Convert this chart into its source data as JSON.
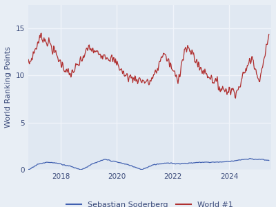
{
  "title": "",
  "ylabel": "World Ranking Points",
  "xlabel": "",
  "background_color": "#e8eef5",
  "ax_background_color": "#e0e8f2",
  "grid_color": "#f0f4fa",
  "soderberg_color": "#4060b0",
  "world1_color": "#b03030",
  "ylim": [
    0,
    17.5
  ],
  "yticks": [
    0,
    5,
    10,
    15
  ],
  "legend_labels": [
    "Sebastian Soderberg",
    "World #1"
  ],
  "linewidth": 0.9,
  "world1_key_times": [
    0,
    0.02,
    0.05,
    0.09,
    0.13,
    0.17,
    0.21,
    0.25,
    0.28,
    0.31,
    0.34,
    0.37,
    0.4,
    0.44,
    0.47,
    0.5,
    0.53,
    0.56,
    0.59,
    0.62,
    0.65,
    0.68,
    0.71,
    0.74,
    0.77,
    0.8,
    0.84,
    0.87,
    0.9,
    0.93,
    0.96,
    1.0
  ],
  "world1_key_vals": [
    11.1,
    12.3,
    14.2,
    13.3,
    11.5,
    10.0,
    11.2,
    13.0,
    12.4,
    12.3,
    11.8,
    11.2,
    10.0,
    9.7,
    9.5,
    9.2,
    10.3,
    12.5,
    11.0,
    9.5,
    12.8,
    12.5,
    10.8,
    10.2,
    9.5,
    8.6,
    8.4,
    8.4,
    10.5,
    12.0,
    9.4,
    14.3
  ],
  "sod_key_times": [
    0,
    0.04,
    0.08,
    0.12,
    0.17,
    0.22,
    0.27,
    0.32,
    0.37,
    0.42,
    0.47,
    0.52,
    0.57,
    0.62,
    0.67,
    0.72,
    0.77,
    0.82,
    0.87,
    0.92,
    0.97,
    1.0
  ],
  "sod_key_vals": [
    0.0,
    0.6,
    0.8,
    0.7,
    0.4,
    0.0,
    0.65,
    1.1,
    0.8,
    0.5,
    0.0,
    0.55,
    0.7,
    0.65,
    0.7,
    0.8,
    0.8,
    0.85,
    1.0,
    1.15,
    1.1,
    1.0
  ],
  "noise_world1": 0.35,
  "noise_sod": 0.04
}
